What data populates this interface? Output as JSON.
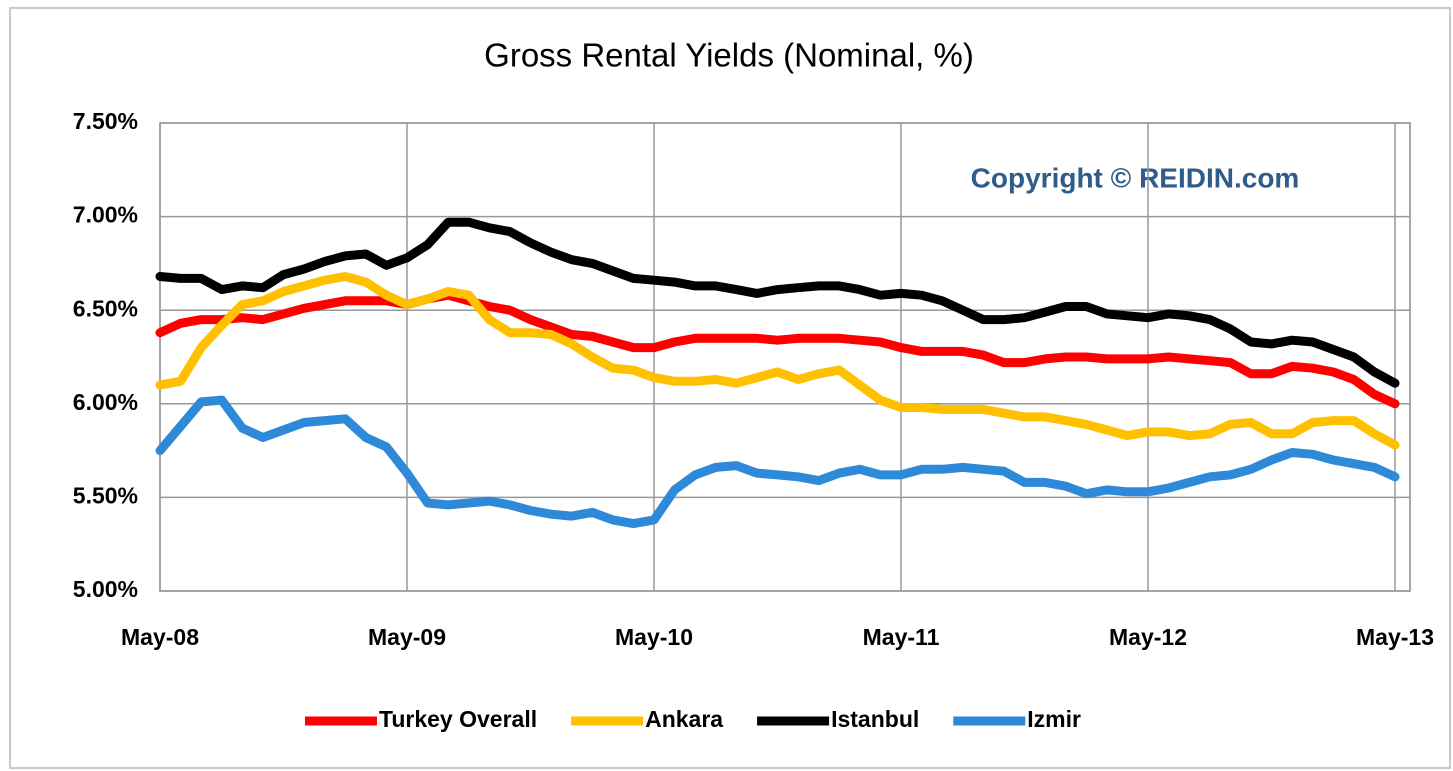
{
  "chart_data": {
    "type": "line",
    "title": "Gross Rental Yields (Nominal, %)",
    "annotation": "Copyright © REIDIN.com",
    "categories": [
      "May-08",
      null,
      null,
      null,
      null,
      null,
      null,
      null,
      null,
      null,
      null,
      null,
      "May-09",
      null,
      null,
      null,
      null,
      null,
      null,
      null,
      null,
      null,
      null,
      null,
      "May-10",
      null,
      null,
      null,
      null,
      null,
      null,
      null,
      null,
      null,
      null,
      null,
      "May-11",
      null,
      null,
      null,
      null,
      null,
      null,
      null,
      null,
      null,
      null,
      null,
      "May-12",
      null,
      null,
      null,
      null,
      null,
      null,
      null,
      null,
      null,
      null,
      null,
      "May-13"
    ],
    "ylim": [
      5.0,
      7.5
    ],
    "yticks": [
      {
        "value": 5.0,
        "label": "5.00%"
      },
      {
        "value": 5.5,
        "label": "5.50%"
      },
      {
        "value": 6.0,
        "label": "6.00%"
      },
      {
        "value": 6.5,
        "label": "6.50%"
      },
      {
        "value": 7.0,
        "label": "7.00%"
      },
      {
        "value": 7.5,
        "label": "7.50%"
      }
    ],
    "grid": true,
    "legend": "bottom",
    "series": [
      {
        "name": "Turkey Overall",
        "color": "#ff0000",
        "values": [
          6.38,
          6.43,
          6.45,
          6.45,
          6.46,
          6.45,
          6.48,
          6.51,
          6.53,
          6.55,
          6.55,
          6.55,
          6.53,
          6.56,
          6.58,
          6.55,
          6.52,
          6.5,
          6.45,
          6.41,
          6.37,
          6.36,
          6.33,
          6.3,
          6.3,
          6.33,
          6.35,
          6.35,
          6.35,
          6.35,
          6.34,
          6.35,
          6.35,
          6.35,
          6.34,
          6.33,
          6.3,
          6.28,
          6.28,
          6.28,
          6.26,
          6.22,
          6.22,
          6.24,
          6.25,
          6.25,
          6.24,
          6.24,
          6.24,
          6.25,
          6.24,
          6.23,
          6.22,
          6.16,
          6.16,
          6.2,
          6.19,
          6.17,
          6.13,
          6.05,
          6.0
        ]
      },
      {
        "name": "Ankara",
        "color": "#ffc000",
        "values": [
          6.1,
          6.12,
          6.3,
          6.42,
          6.53,
          6.55,
          6.6,
          6.63,
          6.66,
          6.68,
          6.65,
          6.58,
          6.53,
          6.56,
          6.6,
          6.58,
          6.45,
          6.38,
          6.38,
          6.37,
          6.32,
          6.25,
          6.19,
          6.18,
          6.14,
          6.12,
          6.12,
          6.13,
          6.11,
          6.14,
          6.17,
          6.13,
          6.16,
          6.18,
          6.1,
          6.02,
          5.98,
          5.98,
          5.97,
          5.97,
          5.97,
          5.95,
          5.93,
          5.93,
          5.91,
          5.89,
          5.86,
          5.83,
          5.85,
          5.85,
          5.83,
          5.84,
          5.89,
          5.9,
          5.84,
          5.84,
          5.9,
          5.91,
          5.91,
          5.84,
          5.78
        ]
      },
      {
        "name": "Istanbul",
        "color": "#000000",
        "values": [
          6.68,
          6.67,
          6.67,
          6.61,
          6.63,
          6.62,
          6.69,
          6.72,
          6.76,
          6.79,
          6.8,
          6.74,
          6.78,
          6.85,
          6.97,
          6.97,
          6.94,
          6.92,
          6.86,
          6.81,
          6.77,
          6.75,
          6.71,
          6.67,
          6.66,
          6.65,
          6.63,
          6.63,
          6.61,
          6.59,
          6.61,
          6.62,
          6.63,
          6.63,
          6.61,
          6.58,
          6.59,
          6.58,
          6.55,
          6.5,
          6.45,
          6.45,
          6.46,
          6.49,
          6.52,
          6.52,
          6.48,
          6.47,
          6.46,
          6.48,
          6.47,
          6.45,
          6.4,
          6.33,
          6.32,
          6.34,
          6.33,
          6.29,
          6.25,
          6.17,
          6.11
        ]
      },
      {
        "name": "Izmir",
        "color": "#2e8ad8",
        "values": [
          5.75,
          5.88,
          6.01,
          6.02,
          5.87,
          5.82,
          5.86,
          5.9,
          5.91,
          5.92,
          5.82,
          5.77,
          5.63,
          5.47,
          5.46,
          5.47,
          5.48,
          5.46,
          5.43,
          5.41,
          5.4,
          5.42,
          5.38,
          5.36,
          5.38,
          5.54,
          5.62,
          5.66,
          5.67,
          5.63,
          5.62,
          5.61,
          5.59,
          5.63,
          5.65,
          5.62,
          5.62,
          5.65,
          5.65,
          5.66,
          5.65,
          5.64,
          5.58,
          5.58,
          5.56,
          5.52,
          5.54,
          5.53,
          5.53,
          5.55,
          5.58,
          5.61,
          5.62,
          5.65,
          5.7,
          5.74,
          5.73,
          5.7,
          5.68,
          5.66,
          5.61
        ]
      }
    ]
  }
}
